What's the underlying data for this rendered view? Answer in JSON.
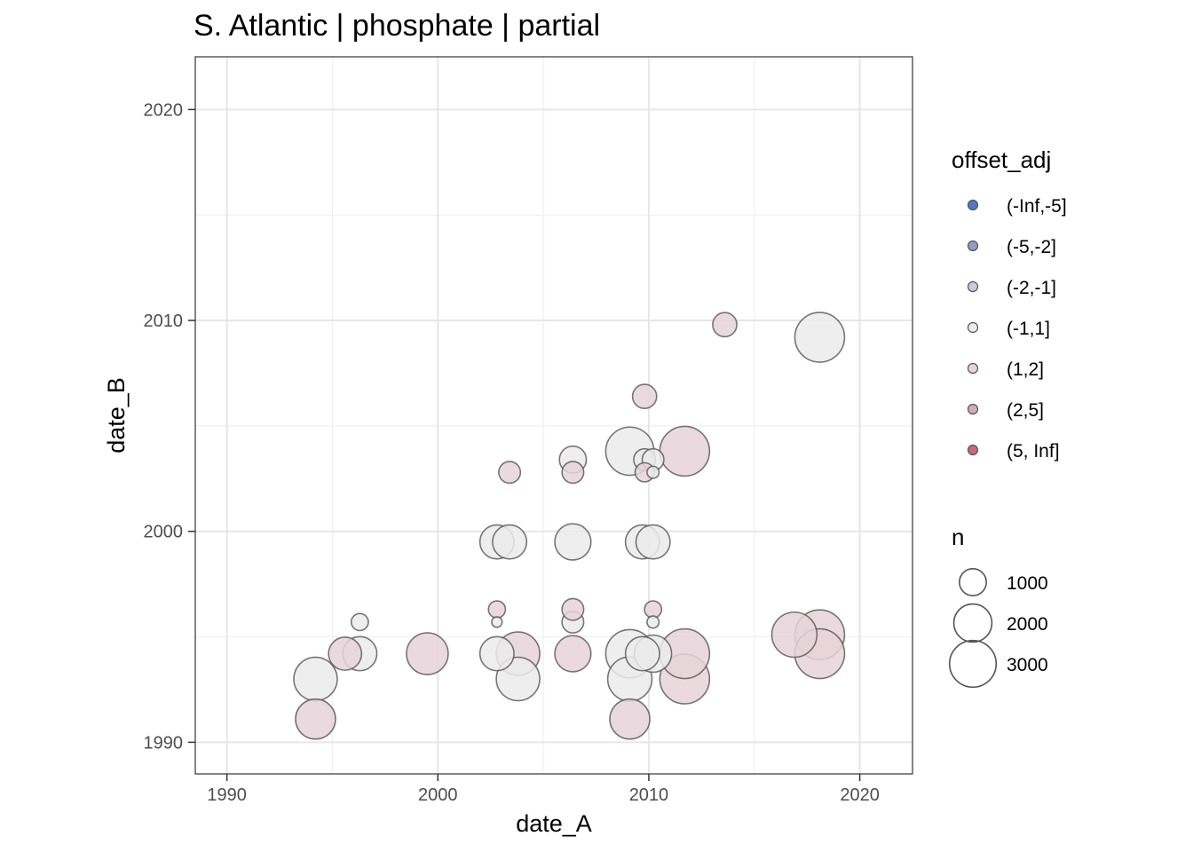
{
  "chart_data": {
    "type": "scatter",
    "title": "S. Atlantic | phosphate | partial",
    "xlabel": "date_A",
    "ylabel": "date_B",
    "xlim": [
      1988.5,
      2022.5
    ],
    "ylim": [
      1988.5,
      2022.5
    ],
    "x_ticks": [
      1990,
      2000,
      2010,
      2020
    ],
    "y_ticks": [
      1990,
      2000,
      2010,
      2020
    ],
    "x_tick_labels": [
      "1990",
      "2000",
      "2010",
      "2020"
    ],
    "y_tick_labels": [
      "1990",
      "2000",
      "2010",
      "2020"
    ],
    "grid": true,
    "legend_position": "right",
    "color_legend": {
      "title": "offset_adj",
      "entries": [
        {
          "label": "(-Inf,-5]",
          "color": "#4e7ac7"
        },
        {
          "label": "(-5,-2]",
          "color": "#8f9dc6"
        },
        {
          "label": "(-2,-1]",
          "color": "#c9cbdf"
        },
        {
          "label": "(-1,1]",
          "color": "#ebebeb"
        },
        {
          "label": "(1,2]",
          "color": "#e6d4d9"
        },
        {
          "label": "(2,5]",
          "color": "#d3aab5"
        },
        {
          "label": "(5, Inf]",
          "color": "#c7687e"
        }
      ]
    },
    "size_legend": {
      "title": "n",
      "entries": [
        {
          "label": "1000",
          "value": 1000
        },
        {
          "label": "2000",
          "value": 2000
        },
        {
          "label": "3000",
          "value": 3000
        }
      ]
    },
    "points": [
      {
        "x": 1994.2,
        "y": 1991.1,
        "n": 2200,
        "offset_adj": "(1,2]"
      },
      {
        "x": 1994.2,
        "y": 1993.0,
        "n": 2600,
        "offset_adj": "(-1,1]"
      },
      {
        "x": 1995.6,
        "y": 1994.2,
        "n": 1500,
        "offset_adj": "(1,2]"
      },
      {
        "x": 1996.3,
        "y": 1994.2,
        "n": 1600,
        "offset_adj": "(-1,1]"
      },
      {
        "x": 1996.3,
        "y": 1995.7,
        "n": 400,
        "offset_adj": "(-1,1]"
      },
      {
        "x": 1999.5,
        "y": 1994.2,
        "n": 2400,
        "offset_adj": "(1,2]"
      },
      {
        "x": 2002.8,
        "y": 1994.2,
        "n": 1600,
        "offset_adj": "(-1,1]"
      },
      {
        "x": 2002.8,
        "y": 1996.3,
        "n": 400,
        "offset_adj": "(1,2]"
      },
      {
        "x": 2002.8,
        "y": 1995.7,
        "n": 150,
        "offset_adj": "(-1,1]"
      },
      {
        "x": 2002.8,
        "y": 1999.5,
        "n": 1600,
        "offset_adj": "(-1,1]"
      },
      {
        "x": 2003.4,
        "y": 1999.5,
        "n": 1600,
        "offset_adj": "(-1,1]"
      },
      {
        "x": 2003.4,
        "y": 2002.8,
        "n": 650,
        "offset_adj": "(1,2]"
      },
      {
        "x": 2003.8,
        "y": 1994.2,
        "n": 2600,
        "offset_adj": "(1,2]"
      },
      {
        "x": 2003.8,
        "y": 1993.0,
        "n": 2600,
        "offset_adj": "(-1,1]"
      },
      {
        "x": 2006.4,
        "y": 1994.2,
        "n": 1800,
        "offset_adj": "(1,2]"
      },
      {
        "x": 2006.4,
        "y": 1995.7,
        "n": 650,
        "offset_adj": "(-1,1]"
      },
      {
        "x": 2006.4,
        "y": 1996.3,
        "n": 650,
        "offset_adj": "(1,2]"
      },
      {
        "x": 2006.4,
        "y": 1999.5,
        "n": 1800,
        "offset_adj": "(-1,1]"
      },
      {
        "x": 2006.4,
        "y": 2002.8,
        "n": 650,
        "offset_adj": "(1,2]"
      },
      {
        "x": 2006.4,
        "y": 2003.4,
        "n": 1000,
        "offset_adj": "(-1,1]"
      },
      {
        "x": 2009.1,
        "y": 1991.1,
        "n": 2200,
        "offset_adj": "(1,2]"
      },
      {
        "x": 2009.1,
        "y": 1993.0,
        "n": 2700,
        "offset_adj": "(-1,1]"
      },
      {
        "x": 2009.1,
        "y": 1994.2,
        "n": 3200,
        "offset_adj": "(-1,1]"
      },
      {
        "x": 2009.1,
        "y": 2003.8,
        "n": 3200,
        "offset_adj": "(-1,1]"
      },
      {
        "x": 2009.7,
        "y": 1994.2,
        "n": 1600,
        "offset_adj": "(-1,1]"
      },
      {
        "x": 2009.7,
        "y": 1999.5,
        "n": 1600,
        "offset_adj": "(-1,1]"
      },
      {
        "x": 2009.8,
        "y": 2002.8,
        "n": 500,
        "offset_adj": "(1,2]"
      },
      {
        "x": 2009.8,
        "y": 2003.4,
        "n": 650,
        "offset_adj": "(-1,1]"
      },
      {
        "x": 2009.8,
        "y": 2006.4,
        "n": 800,
        "offset_adj": "(1,2]"
      },
      {
        "x": 2010.2,
        "y": 1994.2,
        "n": 1900,
        "offset_adj": "(-1,1]"
      },
      {
        "x": 2010.2,
        "y": 1995.7,
        "n": 200,
        "offset_adj": "(-1,1]"
      },
      {
        "x": 2010.2,
        "y": 1996.3,
        "n": 400,
        "offset_adj": "(1,2]"
      },
      {
        "x": 2010.2,
        "y": 1999.5,
        "n": 1600,
        "offset_adj": "(-1,1]"
      },
      {
        "x": 2010.2,
        "y": 2002.8,
        "n": 200,
        "offset_adj": "(-1,1]"
      },
      {
        "x": 2010.2,
        "y": 2003.4,
        "n": 650,
        "offset_adj": "(-1,1]"
      },
      {
        "x": 2011.7,
        "y": 1993.0,
        "n": 3400,
        "offset_adj": "(1,2]"
      },
      {
        "x": 2011.7,
        "y": 1994.2,
        "n": 3400,
        "offset_adj": "(1,2]"
      },
      {
        "x": 2011.7,
        "y": 2003.8,
        "n": 3400,
        "offset_adj": "(1,2]"
      },
      {
        "x": 2013.6,
        "y": 2009.8,
        "n": 800,
        "offset_adj": "(1,2]"
      },
      {
        "x": 2016.9,
        "y": 1995.1,
        "n": 2800,
        "offset_adj": "(1,2]"
      },
      {
        "x": 2018.1,
        "y": 1995.1,
        "n": 3400,
        "offset_adj": "(1,2]"
      },
      {
        "x": 2018.1,
        "y": 1994.2,
        "n": 3400,
        "offset_adj": "(1,2]"
      },
      {
        "x": 2018.1,
        "y": 2009.2,
        "n": 3400,
        "offset_adj": "(-1,1]"
      }
    ]
  }
}
